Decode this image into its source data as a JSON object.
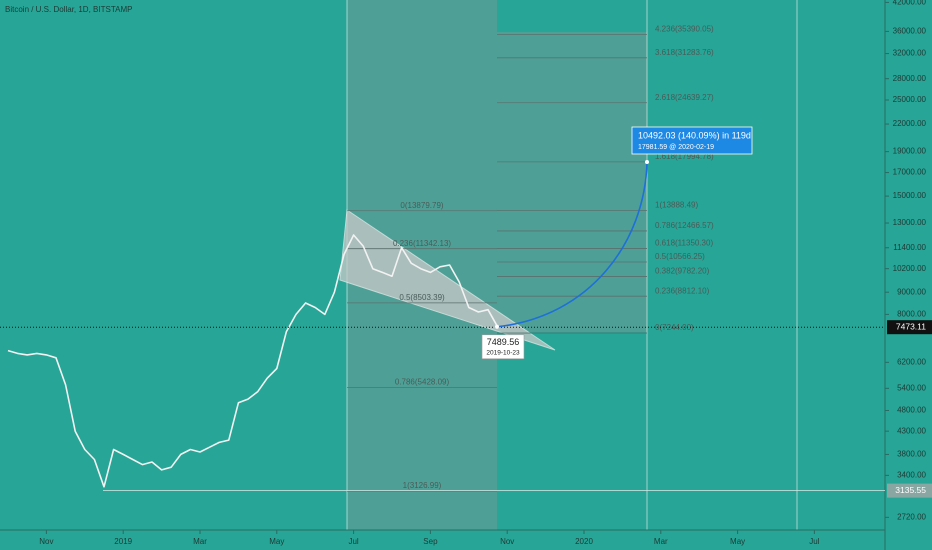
{
  "header": {
    "symbol": "Bitcoin / U.S. Dollar, 1D, BITSTAMP"
  },
  "chart_data": {
    "type": "line",
    "log_scale": true,
    "color": "#f2f2f2",
    "categories": [
      null,
      null,
      null,
      null,
      "Nov",
      null,
      null,
      null,
      null,
      null,
      null,
      null,
      "2019",
      null,
      null,
      null,
      null,
      null,
      null,
      null,
      "Mar",
      null,
      null,
      null,
      null,
      null,
      null,
      null,
      "May",
      null,
      null,
      null,
      null,
      null,
      null,
      null,
      "Jul",
      null,
      null,
      null,
      null,
      null,
      null,
      null,
      "Sep",
      null,
      null,
      null,
      null,
      null,
      null,
      null,
      "Nov",
      null,
      null,
      null,
      null,
      null,
      null,
      null,
      "2020",
      null,
      null,
      null,
      null,
      null,
      null,
      null,
      "Mar",
      null,
      null,
      null,
      null,
      null,
      null,
      null,
      "May",
      null,
      null,
      null,
      null,
      null,
      null,
      null,
      "Jul",
      null,
      null,
      null,
      null,
      null
    ],
    "values": [
      6600,
      6500,
      6450,
      6500,
      6450,
      6350,
      5500,
      4300,
      3900,
      3700,
      3200,
      3900,
      3800,
      3700,
      3600,
      3650,
      3500,
      3550,
      3800,
      3900,
      3850,
      3950,
      4050,
      4100,
      5000,
      5100,
      5300,
      5700,
      6000,
      7300,
      8000,
      8500,
      8300,
      8000,
      9000,
      11000,
      12200,
      11500,
      10200,
      10000,
      9800,
      11400,
      10500,
      10200,
      10000,
      10300,
      10400,
      9500,
      8300,
      8100,
      8200,
      7490,
      null,
      null,
      null,
      null,
      null,
      null,
      null,
      null,
      null,
      null,
      null,
      null,
      null,
      null,
      null,
      null,
      null,
      null,
      null,
      null,
      null,
      null,
      null,
      null,
      null,
      null,
      null,
      null,
      null,
      null,
      null,
      null,
      null,
      null,
      null,
      null,
      null,
      null
    ],
    "ylim": [
      2543,
      42540
    ],
    "yticks": [
      {
        "value": 42000,
        "label": "42000.00"
      },
      {
        "value": 36000,
        "label": "36000.00"
      },
      {
        "value": 32000,
        "label": "32000.00"
      },
      {
        "value": 28000,
        "label": "28000.00"
      },
      {
        "value": 25000,
        "label": "25000.00"
      },
      {
        "value": 22000,
        "label": "22000.00"
      },
      {
        "value": 19000,
        "label": "19000.00"
      },
      {
        "value": 17000,
        "label": "17000.00"
      },
      {
        "value": 15000,
        "label": "15000.00"
      },
      {
        "value": 13000,
        "label": "13000.00"
      },
      {
        "value": 11400,
        "label": "11400.00"
      },
      {
        "value": 10200,
        "label": "10200.00"
      },
      {
        "value": 9000,
        "label": "9000.00"
      },
      {
        "value": 8000,
        "label": "8000.00"
      },
      {
        "value": 6200,
        "label": "6200.00"
      },
      {
        "value": 5400,
        "label": "5400.00"
      },
      {
        "value": 4800,
        "label": "4800.00"
      },
      {
        "value": 4300,
        "label": "4300.00"
      },
      {
        "value": 3800,
        "label": "3800.00"
      },
      {
        "value": 3400,
        "label": "3400.00"
      },
      {
        "value": 2720,
        "label": "2720.00"
      }
    ],
    "price_labels": [
      {
        "value": 7473.11,
        "label": "7473.11"
      },
      {
        "value": 3135.55,
        "label": "3135.55"
      }
    ],
    "left_fib": [
      {
        "value": 13879.79,
        "label": "0(13879.79)"
      },
      {
        "value": 11342.13,
        "label": "0.236(11342.13)"
      },
      {
        "value": 8503.39,
        "label": "0.5(8503.39)"
      },
      {
        "value": 5428.09,
        "label": "0.786(5428.09)"
      },
      {
        "value": 3126.99,
        "label": "1(3126.99)"
      }
    ],
    "right_fib": [
      {
        "value": 35390.05,
        "label": "4.236(35390.05)"
      },
      {
        "value": 31283.76,
        "label": "3.618(31283.76)"
      },
      {
        "value": 24639.27,
        "label": "2.618(24639.27)"
      },
      {
        "value": 17994.78,
        "label": "1.618(17994.78)"
      },
      {
        "value": 13888.49,
        "label": "1(13888.49)"
      },
      {
        "value": 12466.57,
        "label": "0.786(12466.57)"
      },
      {
        "value": 11350.3,
        "label": "0.618(11350.30)"
      },
      {
        "value": 10566.25,
        "label": "0.5(10566.25)"
      },
      {
        "value": 9782.2,
        "label": "0.382(9782.20)"
      },
      {
        "value": 8812.1,
        "label": "0.236(8812.10)"
      },
      {
        "value": 7244.0,
        "label": "0(7244.00)"
      }
    ],
    "projection": {
      "label": "10492.03 (140.09%) in 119d",
      "sublabel": "17981.59 @ 2020-02-19",
      "target": 17981.59
    },
    "last_point": {
      "value": 7489.56,
      "label": "7489.56",
      "date": "2019-10-23"
    }
  }
}
